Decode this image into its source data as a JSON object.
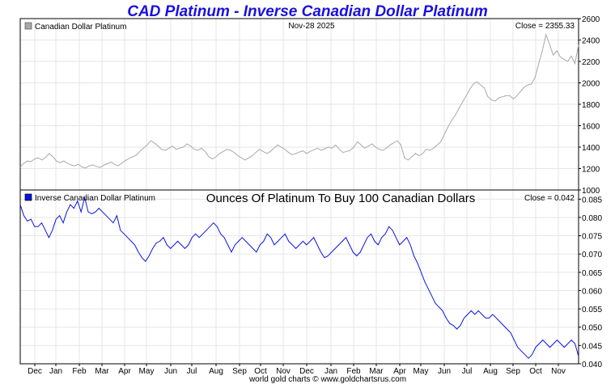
{
  "chart_data": [
    {
      "type": "line",
      "title": "CAD Platinum - Inverse Canadian Dollar Platinum",
      "legend": "Canadian Dollar Platinum",
      "date_label": "Nov-28  2025",
      "close_label": "Close = 2355.33",
      "color": "#a8a8a8",
      "ylim": [
        1000,
        2600
      ],
      "yticks": [
        "2600",
        "2400",
        "2200",
        "2000",
        "1800",
        "1600",
        "1400",
        "1200",
        "1000"
      ],
      "values": [
        1215,
        1250,
        1270,
        1265,
        1290,
        1300,
        1280,
        1305,
        1340,
        1310,
        1270,
        1255,
        1270,
        1250,
        1235,
        1225,
        1240,
        1215,
        1205,
        1225,
        1235,
        1220,
        1210,
        1230,
        1245,
        1260,
        1240,
        1225,
        1250,
        1275,
        1295,
        1310,
        1325,
        1360,
        1390,
        1420,
        1460,
        1440,
        1410,
        1380,
        1370,
        1390,
        1410,
        1380,
        1390,
        1400,
        1430,
        1410,
        1380,
        1370,
        1390,
        1360,
        1310,
        1290,
        1310,
        1340,
        1360,
        1380,
        1370,
        1350,
        1320,
        1300,
        1280,
        1300,
        1320,
        1350,
        1380,
        1360,
        1340,
        1360,
        1390,
        1420,
        1400,
        1380,
        1350,
        1330,
        1340,
        1355,
        1365,
        1340,
        1360,
        1375,
        1390,
        1370,
        1385,
        1400,
        1390,
        1420,
        1380,
        1350,
        1360,
        1370,
        1400,
        1450,
        1420,
        1390,
        1410,
        1430,
        1400,
        1380,
        1370,
        1390,
        1420,
        1440,
        1460,
        1420,
        1300,
        1280,
        1310,
        1340,
        1320,
        1340,
        1380,
        1370,
        1390,
        1420,
        1450,
        1520,
        1590,
        1650,
        1700,
        1760,
        1820,
        1880,
        1940,
        1990,
        2010,
        1980,
        1950,
        1870,
        1840,
        1830,
        1860,
        1870,
        1880,
        1880,
        1850,
        1880,
        1920,
        1960,
        1980,
        1990,
        2050,
        2180,
        2300,
        2450,
        2360,
        2260,
        2300,
        2240,
        2220,
        2200,
        2250,
        2180,
        2355
      ]
    },
    {
      "type": "line",
      "title": "Ounces Of Platinum To Buy 100 Canadian Dollars",
      "legend": "Inverse Canadian Dollar Platinum",
      "close_label": "Close = 0.042",
      "color": "#0a14e0",
      "ylim": [
        0.04,
        0.0875
      ],
      "yticks": [
        "0.085",
        "0.080",
        "0.075",
        "0.070",
        "0.065",
        "0.060",
        "0.055",
        "0.050",
        "0.045",
        "0.040"
      ],
      "values": [
        0.0835,
        0.0805,
        0.079,
        0.0795,
        0.0775,
        0.0775,
        0.0785,
        0.0765,
        0.0745,
        0.0765,
        0.0795,
        0.0805,
        0.0785,
        0.0815,
        0.0835,
        0.0825,
        0.0845,
        0.0815,
        0.0855,
        0.0815,
        0.081,
        0.0815,
        0.0825,
        0.0815,
        0.0805,
        0.0795,
        0.0785,
        0.0805,
        0.0765,
        0.0755,
        0.0745,
        0.0735,
        0.0725,
        0.0705,
        0.069,
        0.068,
        0.0695,
        0.0715,
        0.073,
        0.0735,
        0.0745,
        0.0725,
        0.0715,
        0.0725,
        0.0735,
        0.0725,
        0.0715,
        0.0725,
        0.0745,
        0.0755,
        0.0745,
        0.0755,
        0.0765,
        0.0775,
        0.0785,
        0.0775,
        0.0755,
        0.0745,
        0.0725,
        0.0705,
        0.0725,
        0.0735,
        0.0745,
        0.0735,
        0.0725,
        0.0715,
        0.0705,
        0.0725,
        0.0735,
        0.0755,
        0.0745,
        0.0725,
        0.0735,
        0.0745,
        0.0755,
        0.0735,
        0.0725,
        0.0715,
        0.0725,
        0.0735,
        0.0725,
        0.0735,
        0.0745,
        0.0725,
        0.0705,
        0.069,
        0.0695,
        0.0705,
        0.0715,
        0.0725,
        0.0735,
        0.0745,
        0.0725,
        0.0705,
        0.0695,
        0.0705,
        0.0725,
        0.0745,
        0.0755,
        0.0735,
        0.0725,
        0.0745,
        0.0755,
        0.0775,
        0.0765,
        0.0745,
        0.0725,
        0.0735,
        0.0745,
        0.0725,
        0.0695,
        0.0675,
        0.065,
        0.0625,
        0.0605,
        0.0585,
        0.0565,
        0.0555,
        0.0545,
        0.0525,
        0.051,
        0.0505,
        0.0495,
        0.0505,
        0.0525,
        0.0535,
        0.0545,
        0.0535,
        0.0545,
        0.0535,
        0.0525,
        0.0525,
        0.0535,
        0.0525,
        0.0515,
        0.0505,
        0.0495,
        0.0485,
        0.0465,
        0.0445,
        0.0435,
        0.0425,
        0.0415,
        0.0425,
        0.0445,
        0.0455,
        0.0465,
        0.0455,
        0.0445,
        0.0455,
        0.0465,
        0.0455,
        0.0445,
        0.0455,
        0.0465,
        0.0455,
        0.042
      ]
    }
  ],
  "x_axis": {
    "months": [
      "Dec",
      "Jan",
      "Feb",
      "Mar",
      "Apr",
      "May",
      "Jun",
      "Jul",
      "Aug",
      "Sep",
      "Oct",
      "Nov",
      "Dec",
      "Jan",
      "Feb",
      "Mar",
      "Apr",
      "May",
      "Jun",
      "Jul",
      "Aug",
      "Sep",
      "Oct",
      "Nov"
    ]
  },
  "footer": "world gold charts © www.goldchartsrus.com"
}
